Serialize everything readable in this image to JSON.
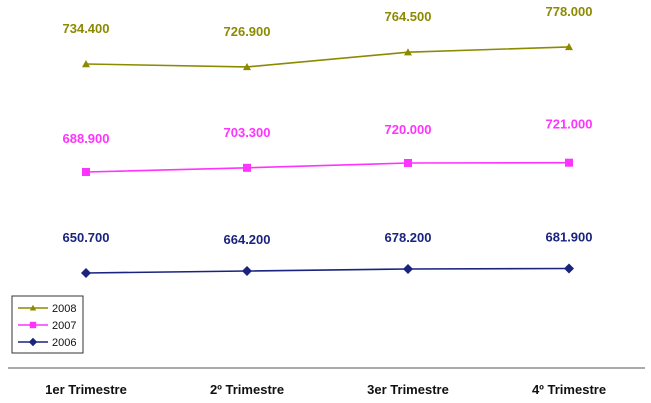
{
  "chart_data": {
    "type": "line",
    "categories": [
      "1er Trimestre",
      "2º Trimestre",
      "3er Trimestre",
      "4º Trimestre"
    ],
    "series": [
      {
        "name": "2008",
        "values": [
          734400,
          726900,
          764500,
          778000
        ],
        "labels": [
          "734.400",
          "726.900",
          "764.500",
          "778.000"
        ],
        "color": "#8c8a00",
        "marker": "triangle"
      },
      {
        "name": "2007",
        "values": [
          688900,
          703300,
          720000,
          721000
        ],
        "labels": [
          "688.900",
          "703.300",
          "720.000",
          "721.000"
        ],
        "color": "#ff33ff",
        "marker": "square"
      },
      {
        "name": "2006",
        "values": [
          650700,
          664200,
          678200,
          681900
        ],
        "labels": [
          "650.700",
          "664.200",
          "678.200",
          "681.900"
        ],
        "color": "#1a237e",
        "marker": "diamond"
      }
    ],
    "grid": false,
    "legend_position": "bottom-left"
  }
}
